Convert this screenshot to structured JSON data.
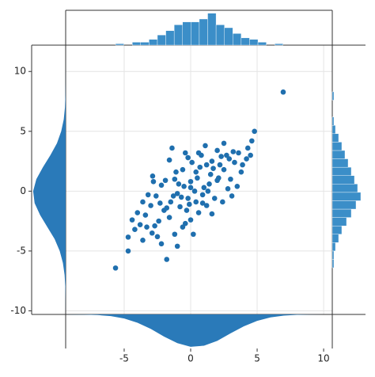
{
  "chart_data": [
    {
      "type": "scatter",
      "color": "#1f6fae",
      "grid": true,
      "xlim": [
        -9.4,
        10.65
      ],
      "ylim": [
        -10.3,
        12.2
      ],
      "xticks": [
        -5,
        0,
        5,
        10
      ],
      "yticks": [
        -10,
        -5,
        0,
        5,
        10
      ],
      "x": [
        6.96,
        -5.65,
        -4.7,
        -4.7,
        4.8,
        -0.4,
        -2.86,
        -1.8,
        4.6,
        4.3,
        4.5,
        3.9,
        3.6,
        3.2,
        2.9,
        2.5,
        2.0,
        1.6,
        1.2,
        0.8,
        0.4,
        0.1,
        -0.6,
        -1.2,
        -1.6,
        -2.2,
        -2.6,
        -3.0,
        -3.4,
        -3.8,
        -4.2,
        -3.6,
        -2.9,
        -2.4,
        -2.0,
        -1.5,
        -1.0,
        -0.5,
        0.0,
        0.5,
        1.0,
        1.5,
        2.0,
        2.5,
        3.0,
        3.5,
        1.8,
        1.2,
        0.6,
        0.0,
        -0.6,
        -1.2,
        -2.2,
        -1.6,
        -0.8,
        -0.2,
        0.3,
        0.9,
        1.4,
        2.2,
        2.8,
        3.3,
        -3.2,
        -4.0,
        -2.7,
        -1.9,
        -1.3,
        -0.3,
        0.7,
        1.7,
        2.4,
        -0.9,
        -2.3,
        0.2,
        -1.0,
        0.9,
        1.1,
        -0.2,
        0.6,
        -1.4,
        2.7,
        3.8,
        4.2,
        -3.6,
        -2.8,
        -0.4,
        0.4,
        1.6,
        -1.8,
        2.1,
        -2.5,
        -3.3,
        1.3,
        0.0,
        -0.7,
        -1.1,
        3.1,
        -4.4,
        2.3,
        -0.1
      ],
      "y": [
        8.28,
        -6.42,
        -3.84,
        -5.0,
        5.0,
        3.2,
        1.26,
        -5.7,
        4.2,
        3.6,
        3.0,
        2.2,
        3.2,
        3.3,
        2.7,
        4.0,
        3.4,
        2.5,
        2.2,
        3.0,
        1.6,
        2.4,
        1.8,
        1.0,
        2.6,
        0.5,
        -0.4,
        -1.2,
        -2.0,
        -2.8,
        -3.2,
        -4.1,
        -3.5,
        -2.5,
        -1.6,
        -0.9,
        -0.2,
        0.4,
        0.8,
        1.1,
        0.3,
        1.4,
        0.9,
        1.8,
        1.0,
        0.4,
        -0.6,
        -1.2,
        -1.8,
        -2.4,
        -3.0,
        -3.6,
        -4.4,
        -2.2,
        -1.3,
        -0.6,
        0.0,
        -0.3,
        0.6,
        2.2,
        0.2,
        2.4,
        -0.3,
        -1.8,
        -2.9,
        0.9,
        -0.4,
        -1.6,
        2.0,
        1.9,
        -0.9,
        0.6,
        -1.0,
        -3.6,
        -4.6,
        -1.0,
        3.8,
        2.8,
        3.2,
        3.6,
        3.0,
        1.6,
        2.7,
        -0.9,
        0.8,
        -2.7,
        -0.9,
        -1.9,
        -1.4,
        1.1,
        -3.8,
        -3.0,
        0.0,
        0.3,
        -0.5,
        1.6,
        -0.4,
        -2.4,
        2.9,
        -1.1
      ]
    },
    {
      "type": "histogram",
      "orientation": "vertical",
      "color": "#3b8ec8",
      "xlim": [
        -9.4,
        10.65
      ],
      "ylim": [
        0,
        24
      ],
      "bins": [
        -5.65,
        -5.02,
        -4.39,
        -3.76,
        -3.13,
        -2.5,
        -1.87,
        -1.24,
        -0.61,
        0.02,
        0.65,
        1.28,
        1.91,
        2.54,
        3.17,
        3.8,
        4.43,
        5.06,
        5.69,
        6.32,
        6.95
      ],
      "counts": [
        1,
        0,
        2,
        2,
        4,
        7,
        10,
        14,
        16,
        16,
        18,
        22,
        14,
        12,
        8,
        5,
        4,
        2,
        0,
        1
      ]
    },
    {
      "type": "histogram",
      "orientation": "horizontal",
      "color": "#3b8ec8",
      "xlim": [
        0,
        20
      ],
      "ylim": [
        -10.3,
        12.2
      ],
      "bins": [
        -6.4,
        -5.7,
        -5.0,
        -4.3,
        -3.6,
        -2.9,
        -2.2,
        -1.5,
        -0.8,
        -0.1,
        0.6,
        1.3,
        2.0,
        2.7,
        3.4,
        4.1,
        4.8,
        5.5,
        6.2,
        6.9,
        7.6,
        8.3
      ],
      "counts": [
        1,
        1,
        2,
        4,
        6,
        9,
        12,
        15,
        18,
        16,
        14,
        12,
        10,
        8,
        6,
        4,
        2,
        1,
        0,
        0,
        1
      ]
    },
    {
      "type": "kde",
      "orientation": "horizontal",
      "color": "#2a7ab9",
      "xlim": [
        0,
        0.16
      ],
      "ylim": [
        -10.3,
        12.2
      ],
      "y": [
        -10,
        -9,
        -8,
        -7,
        -6,
        -5,
        -4,
        -3,
        -2,
        -1,
        0,
        1,
        2,
        3,
        4,
        5,
        6,
        7,
        8,
        9,
        10,
        11,
        12
      ],
      "density": [
        0.0001,
        0.0005,
        0.0017,
        0.005,
        0.013,
        0.028,
        0.052,
        0.086,
        0.12,
        0.146,
        0.153,
        0.138,
        0.107,
        0.072,
        0.041,
        0.021,
        0.009,
        0.0033,
        0.0011,
        0.0003,
        0.0001,
        0,
        0
      ]
    },
    {
      "type": "kde",
      "orientation": "vertical",
      "color": "#2a7ab9",
      "xlim": [
        -9.4,
        10.65
      ],
      "ylim": [
        0,
        0.16
      ],
      "x": [
        -10,
        -9,
        -8,
        -7,
        -6,
        -5,
        -4,
        -3,
        -2,
        -1,
        0,
        1,
        2,
        3,
        4,
        5,
        6,
        7,
        8,
        9,
        10,
        11
      ],
      "density": [
        0.0001,
        0.0003,
        0.0009,
        0.003,
        0.008,
        0.019,
        0.039,
        0.068,
        0.104,
        0.135,
        0.152,
        0.147,
        0.124,
        0.089,
        0.056,
        0.03,
        0.014,
        0.0055,
        0.0019,
        0.0006,
        0.0001,
        0
      ]
    }
  ]
}
